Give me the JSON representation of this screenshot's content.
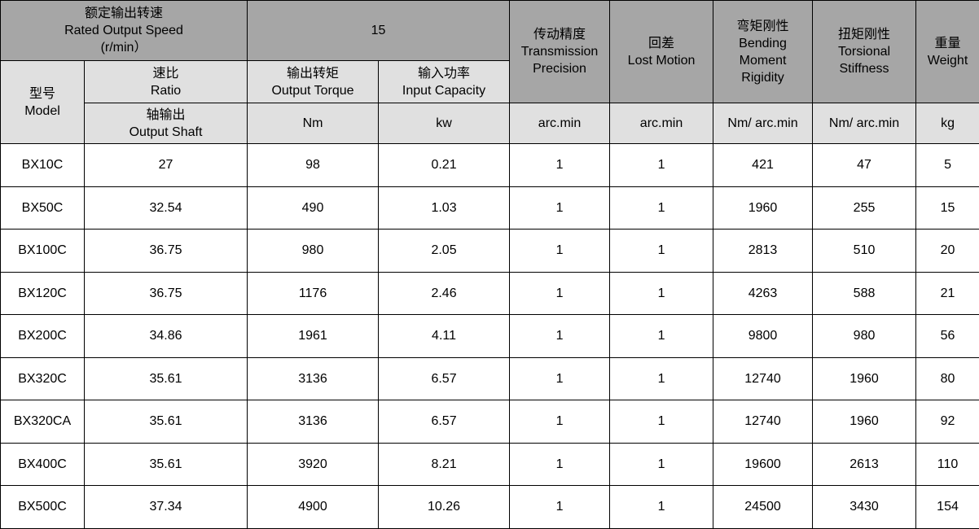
{
  "header": {
    "speed": {
      "cn": "额定输出转速",
      "en": "Rated Output Speed",
      "unit": "(r/min）"
    },
    "speed_value": "15",
    "precision": {
      "cn": "传动精度",
      "en1": "Transmission",
      "en2": "Precision",
      "unit": "arc.min"
    },
    "lost": {
      "cn": "回差",
      "en": "Lost Motion",
      "unit": "arc.min"
    },
    "bending": {
      "cn": "弯矩刚性",
      "en1": "Bending",
      "en2": "Moment",
      "en3": "Rigidity",
      "unit": "Nm/ arc.min"
    },
    "torsional": {
      "cn": "扭矩刚性",
      "en1": "Torsional",
      "en2": "Stiffness",
      "unit": "Nm/ arc.min"
    },
    "weight": {
      "cn": "重量",
      "en": "Weight",
      "unit": "kg"
    },
    "model": {
      "cn": "型号",
      "en": "Model"
    },
    "ratio": {
      "cn": "速比",
      "en": "Ratio",
      "sub_cn": "轴输出",
      "sub_en": "Output Shaft"
    },
    "torque": {
      "cn": "输出转矩",
      "en": "Output Torque",
      "unit": "Nm"
    },
    "power": {
      "cn": "输入功率",
      "en": "Input Capacity",
      "unit": "kw"
    }
  },
  "rows": [
    [
      "BX10C",
      "27",
      "98",
      "0.21",
      "1",
      "1",
      "421",
      "47",
      "5"
    ],
    [
      "BX50C",
      "32.54",
      "490",
      "1.03",
      "1",
      "1",
      "1960",
      "255",
      "15"
    ],
    [
      "BX100C",
      "36.75",
      "980",
      "2.05",
      "1",
      "1",
      "2813",
      "510",
      "20"
    ],
    [
      "BX120C",
      "36.75",
      "1176",
      "2.46",
      "1",
      "1",
      "4263",
      "588",
      "21"
    ],
    [
      "BX200C",
      "34.86",
      "1961",
      "4.11",
      "1",
      "1",
      "9800",
      "980",
      "56"
    ],
    [
      "BX320C",
      "35.61",
      "3136",
      "6.57",
      "1",
      "1",
      "12740",
      "1960",
      "80"
    ],
    [
      "BX320CA",
      "35.61",
      "3136",
      "6.57",
      "1",
      "1",
      "12740",
      "1960",
      "92"
    ],
    [
      "BX400C",
      "35.61",
      "3920",
      "8.21",
      "1",
      "1",
      "19600",
      "2613",
      "110"
    ],
    [
      "BX500C",
      "37.34",
      "4900",
      "10.26",
      "1",
      "1",
      "24500",
      "3430",
      "154"
    ]
  ]
}
